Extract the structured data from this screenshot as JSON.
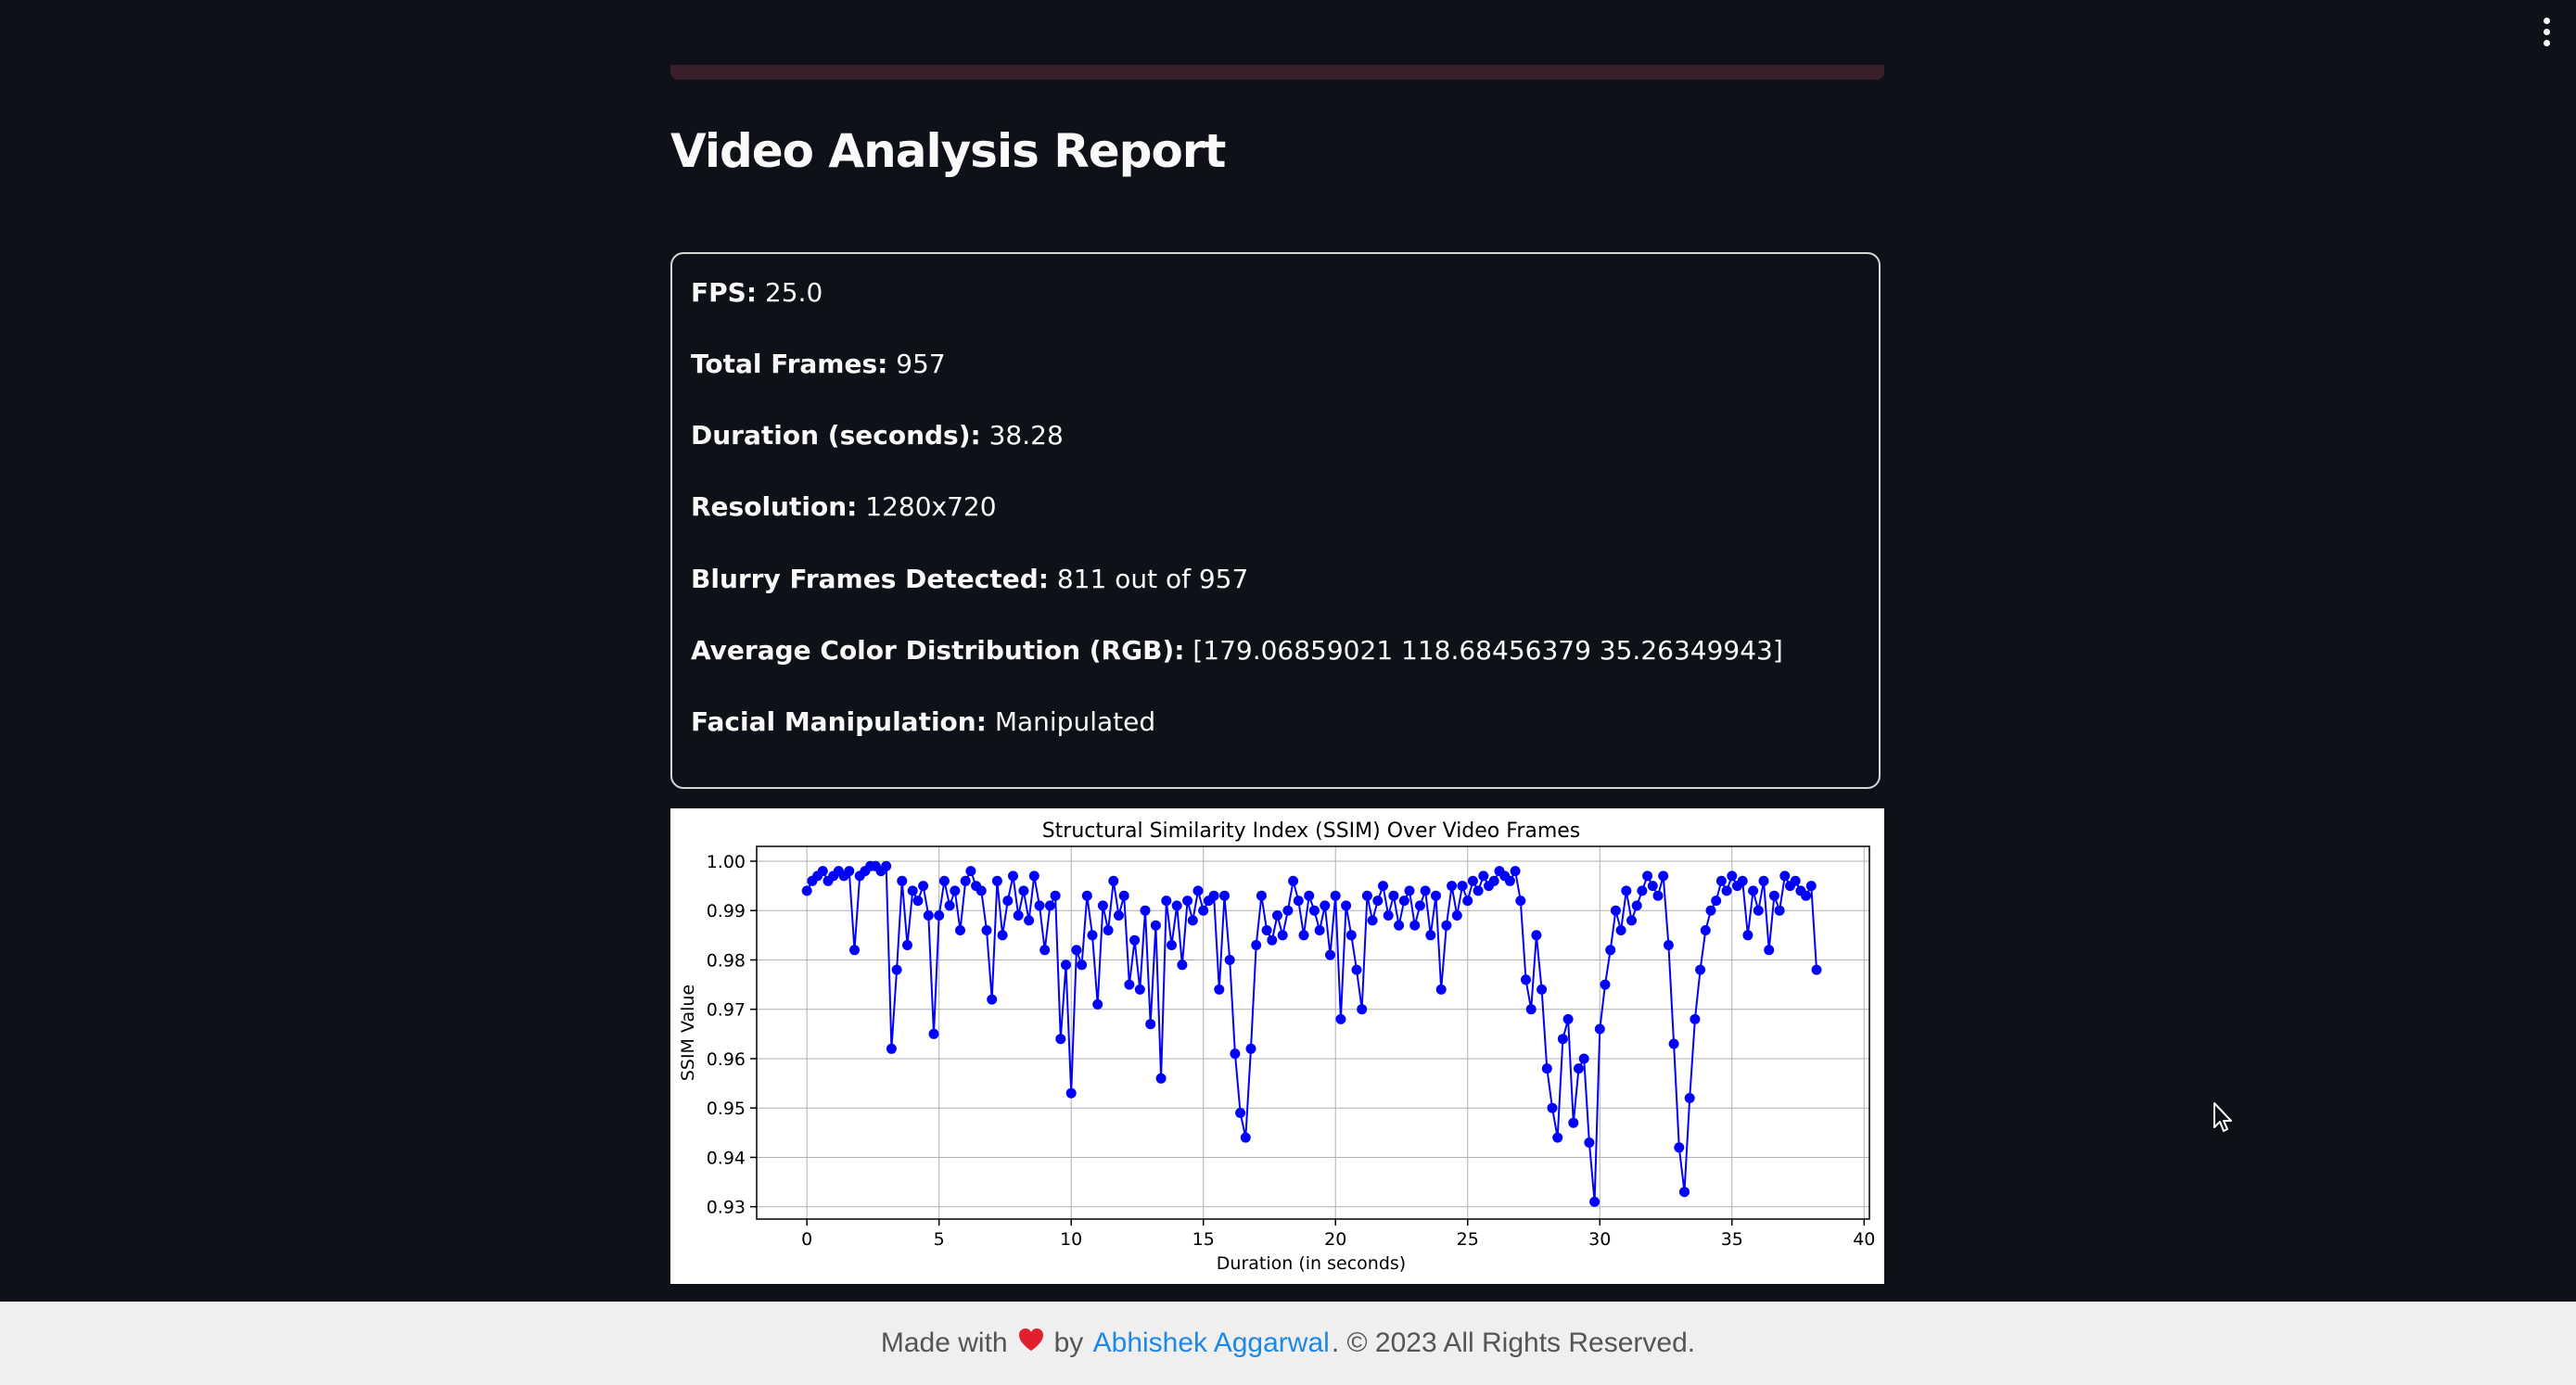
{
  "page": {
    "title": "Video Analysis Report"
  },
  "report": {
    "fps": {
      "label": "FPS:",
      "value": "25.0"
    },
    "total_frames": {
      "label": "Total Frames:",
      "value": "957"
    },
    "duration": {
      "label": "Duration (seconds):",
      "value": "38.28"
    },
    "resolution": {
      "label": "Resolution:",
      "value": "1280x720"
    },
    "blurry": {
      "label": "Blurry Frames Detected:",
      "value": "811 out of 957"
    },
    "color": {
      "label": "Average Color Distribution (RGB):",
      "value": "[179.06859021 118.68456379 35.26349943]"
    },
    "facial": {
      "label": "Facial Manipulation:",
      "value": "Manipulated"
    }
  },
  "chart_data": {
    "type": "line",
    "title": "Structural Similarity Index (SSIM) Over Video Frames",
    "xlabel": "Duration (in seconds)",
    "ylabel": "SSIM Value",
    "xlim": [
      -1.9,
      40.2
    ],
    "ylim": [
      0.9275,
      1.003
    ],
    "xticks": [
      0,
      5,
      10,
      15,
      20,
      25,
      30,
      35,
      40
    ],
    "xtick_labels": [
      "0",
      "5",
      "10",
      "15",
      "20",
      "25",
      "30",
      "35",
      "40"
    ],
    "yticks": [
      0.93,
      0.94,
      0.95,
      0.96,
      0.97,
      0.98,
      0.99,
      1.0
    ],
    "ytick_labels": [
      "0.93",
      "0.94",
      "0.95",
      "0.96",
      "0.97",
      "0.98",
      "0.99",
      "1.00"
    ],
    "grid": true,
    "color": "#0000ff",
    "marker": "circle",
    "x": [
      0.0,
      0.2,
      0.4,
      0.6,
      0.8,
      1.0,
      1.2,
      1.4,
      1.6,
      1.8,
      2.0,
      2.2,
      2.4,
      2.6,
      2.8,
      3.0,
      3.2,
      3.4,
      3.6,
      3.8,
      4.0,
      4.2,
      4.4,
      4.6,
      4.8,
      5.0,
      5.2,
      5.4,
      5.6,
      5.8,
      6.0,
      6.2,
      6.4,
      6.6,
      6.8,
      7.0,
      7.2,
      7.4,
      7.6,
      7.8,
      8.0,
      8.2,
      8.4,
      8.6,
      8.8,
      9.0,
      9.2,
      9.4,
      9.6,
      9.8,
      10.0,
      10.2,
      10.4,
      10.6,
      10.8,
      11.0,
      11.2,
      11.4,
      11.6,
      11.8,
      12.0,
      12.2,
      12.4,
      12.6,
      12.8,
      13.0,
      13.2,
      13.4,
      13.6,
      13.8,
      14.0,
      14.2,
      14.4,
      14.6,
      14.8,
      15.0,
      15.2,
      15.4,
      15.6,
      15.8,
      16.0,
      16.2,
      16.4,
      16.6,
      16.8,
      17.0,
      17.2,
      17.4,
      17.6,
      17.8,
      18.0,
      18.2,
      18.4,
      18.6,
      18.8,
      19.0,
      19.2,
      19.4,
      19.6,
      19.8,
      20.0,
      20.2,
      20.4,
      20.6,
      20.8,
      21.0,
      21.2,
      21.4,
      21.6,
      21.8,
      22.0,
      22.2,
      22.4,
      22.6,
      22.8,
      23.0,
      23.2,
      23.4,
      23.6,
      23.8,
      24.0,
      24.2,
      24.4,
      24.6,
      24.8,
      25.0,
      25.2,
      25.4,
      25.6,
      25.8,
      26.0,
      26.2,
      26.4,
      26.6,
      26.8,
      27.0,
      27.2,
      27.4,
      27.6,
      27.8,
      28.0,
      28.2,
      28.4,
      28.6,
      28.8,
      29.0,
      29.2,
      29.4,
      29.6,
      29.8,
      30.0,
      30.2,
      30.4,
      30.6,
      30.8,
      31.0,
      31.2,
      31.4,
      31.6,
      31.8,
      32.0,
      32.2,
      32.4,
      32.6,
      32.8,
      33.0,
      33.2,
      33.4,
      33.6,
      33.8,
      34.0,
      34.2,
      34.4,
      34.6,
      34.8,
      35.0,
      35.2,
      35.4,
      35.6,
      35.8,
      36.0,
      36.2,
      36.4,
      36.6,
      36.8,
      37.0,
      37.2,
      37.4,
      37.6,
      37.8,
      38.0,
      38.2
    ],
    "y": [
      0.994,
      0.996,
      0.997,
      0.998,
      0.996,
      0.997,
      0.998,
      0.997,
      0.998,
      0.982,
      0.997,
      0.998,
      0.999,
      0.999,
      0.998,
      0.999,
      0.962,
      0.978,
      0.996,
      0.983,
      0.994,
      0.992,
      0.995,
      0.989,
      0.965,
      0.989,
      0.996,
      0.991,
      0.994,
      0.986,
      0.996,
      0.998,
      0.995,
      0.994,
      0.986,
      0.972,
      0.996,
      0.985,
      0.992,
      0.997,
      0.989,
      0.994,
      0.988,
      0.997,
      0.991,
      0.982,
      0.991,
      0.993,
      0.964,
      0.979,
      0.953,
      0.982,
      0.979,
      0.993,
      0.985,
      0.971,
      0.991,
      0.986,
      0.996,
      0.989,
      0.993,
      0.975,
      0.984,
      0.974,
      0.99,
      0.967,
      0.987,
      0.956,
      0.992,
      0.983,
      0.991,
      0.979,
      0.992,
      0.988,
      0.994,
      0.99,
      0.992,
      0.993,
      0.974,
      0.993,
      0.98,
      0.961,
      0.949,
      0.944,
      0.962,
      0.983,
      0.993,
      0.986,
      0.984,
      0.989,
      0.985,
      0.99,
      0.996,
      0.992,
      0.985,
      0.993,
      0.99,
      0.986,
      0.991,
      0.981,
      0.993,
      0.968,
      0.991,
      0.985,
      0.978,
      0.97,
      0.993,
      0.988,
      0.992,
      0.995,
      0.989,
      0.993,
      0.987,
      0.992,
      0.994,
      0.987,
      0.991,
      0.994,
      0.985,
      0.993,
      0.974,
      0.987,
      0.995,
      0.989,
      0.995,
      0.992,
      0.996,
      0.994,
      0.997,
      0.995,
      0.996,
      0.998,
      0.997,
      0.996,
      0.998,
      0.992,
      0.976,
      0.97,
      0.985,
      0.974,
      0.958,
      0.95,
      0.944,
      0.964,
      0.968,
      0.947,
      0.958,
      0.96,
      0.943,
      0.931,
      0.966,
      0.975,
      0.982,
      0.99,
      0.986,
      0.994,
      0.988,
      0.991,
      0.994,
      0.997,
      0.995,
      0.993,
      0.997,
      0.983,
      0.963,
      0.942,
      0.933,
      0.952,
      0.968,
      0.978,
      0.986,
      0.99,
      0.992,
      0.996,
      0.994,
      0.997,
      0.995,
      0.996,
      0.985,
      0.994,
      0.99,
      0.996,
      0.982,
      0.993,
      0.99,
      0.997,
      0.995,
      0.996,
      0.994,
      0.993,
      0.995,
      0.978
    ]
  },
  "footer": {
    "made_with": "Made with",
    "by": "by",
    "author": "Abhishek Aggarwal",
    "rights": ". © 2023 All Rights Reserved."
  }
}
